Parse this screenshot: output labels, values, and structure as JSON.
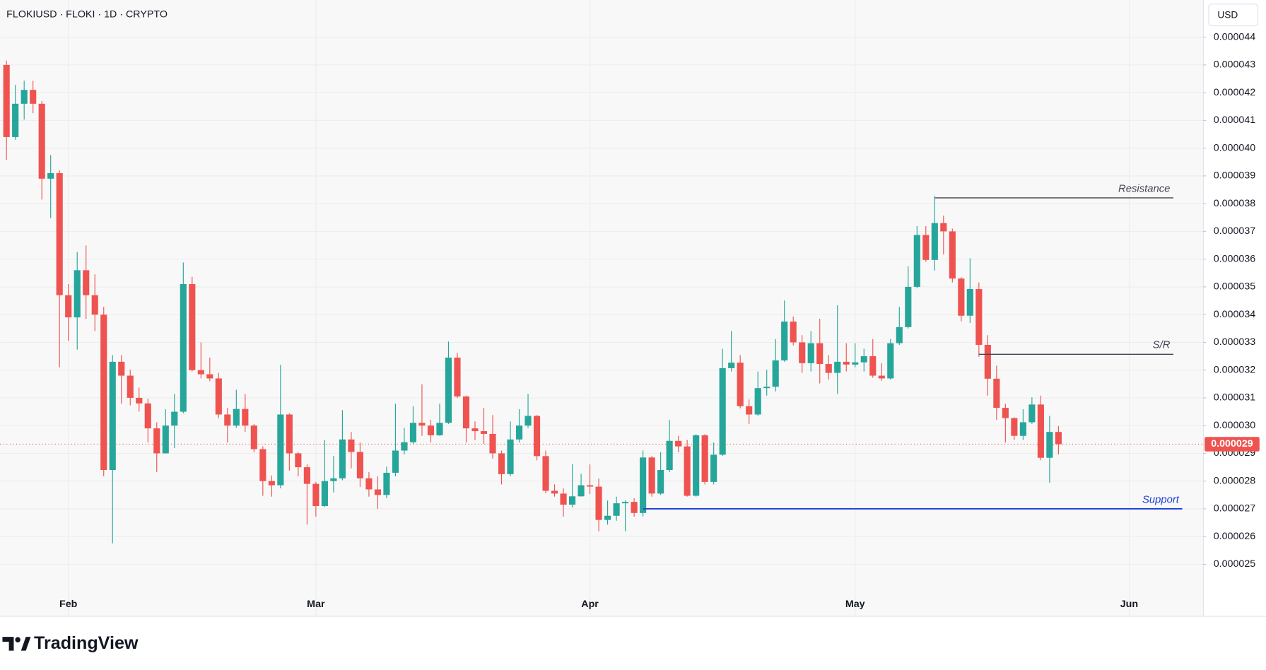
{
  "chart_data": {
    "type": "candlestick",
    "title": "FLOKIUSD · FLOKI · 1D · CRYPTO",
    "currency": "USD",
    "brand": "TradingView",
    "up_color": "#26a69a",
    "down_color": "#ef5350",
    "series": {
      "open": [
        4.3e-05,
        4.04e-05,
        4.16e-05,
        4.21e-05,
        4.16e-05,
        3.89e-05,
        3.91e-05,
        3.47e-05,
        3.39e-05,
        3.56e-05,
        3.47e-05,
        3.4e-05,
        2.84e-05,
        3.23e-05,
        3.18e-05,
        3.1e-05,
        3.08e-05,
        2.99e-05,
        2.9e-05,
        3e-05,
        3.05e-05,
        3.51e-05,
        3.2e-05,
        3.185e-05,
        3.17e-05,
        3.04e-05,
        3e-05,
        3.06e-05,
        3e-05,
        2.915e-05,
        2.8e-05,
        2.785e-05,
        3.04e-05,
        2.9e-05,
        2.85e-05,
        2.79e-05,
        2.71e-05,
        2.8e-05,
        2.81e-05,
        2.95e-05,
        2.905e-05,
        2.81e-05,
        2.77e-05,
        2.75e-05,
        2.83e-05,
        2.91e-05,
        2.94e-05,
        3.01e-05,
        3e-05,
        2.965e-05,
        3.01e-05,
        3.245e-05,
        3.105e-05,
        2.99e-05,
        2.98e-05,
        2.97e-05,
        2.9e-05,
        2.825e-05,
        2.95e-05,
        3e-05,
        3.035e-05,
        2.89e-05,
        2.765e-05,
        2.755e-05,
        2.715e-05,
        2.745e-05,
        2.785e-05,
        2.78e-05,
        2.66e-05,
        2.675e-05,
        2.72e-05,
        2.725e-05,
        2.685e-05,
        2.885e-05,
        2.755e-05,
        2.84e-05,
        2.945e-05,
        2.925e-05,
        2.747e-05,
        2.965e-05,
        2.797e-05,
        2.895e-05,
        3.207e-05,
        3.227e-05,
        3.07e-05,
        3.04e-05,
        3.135e-05,
        3.14e-05,
        3.235e-05,
        3.375e-05,
        3.3e-05,
        3.225e-05,
        3.297e-05,
        3.222e-05,
        3.19e-05,
        3.23e-05,
        3.22e-05,
        3.228e-05,
        3.25e-05,
        3.18e-05,
        3.17e-05,
        3.297e-05,
        3.355e-05,
        3.5e-05,
        3.687e-05,
        3.597e-05,
        3.73e-05,
        3.7e-05,
        3.53e-05,
        3.396e-05,
        3.492e-05,
        3.291e-05,
        3.169e-05,
        3.064e-05,
        3.027e-05,
        2.963e-05,
        3.012e-05,
        3.076e-05,
        2.884e-05,
        2.977e-05
      ],
      "high": [
        4.316e-05,
        4.228e-05,
        4.243e-05,
        4.243e-05,
        4.17e-05,
        3.975e-05,
        3.92e-05,
        3.51e-05,
        3.626e-05,
        3.649e-05,
        3.545e-05,
        3.428e-05,
        3.254e-05,
        3.254e-05,
        3.201e-05,
        3.137e-05,
        3.097e-05,
        3.012e-05,
        3.059e-05,
        3.114e-05,
        3.588e-05,
        3.536e-05,
        3.3e-05,
        3.245e-05,
        3.19e-05,
        3.064e-05,
        3.129e-05,
        3.114e-05,
        3.006e-05,
        2.925e-05,
        2.82e-05,
        3.219e-05,
        3.044e-05,
        2.904e-05,
        2.86e-05,
        2.797e-05,
        2.948e-05,
        2.89e-05,
        3.056e-05,
        2.977e-05,
        2.939e-05,
        2.832e-05,
        2.817e-05,
        2.852e-05,
        3.079e-05,
        2.992e-05,
        3.07e-05,
        3.149e-05,
        3.021e-05,
        3.079e-05,
        3.303e-05,
        3.262e-05,
        3.108e-05,
        3.015e-05,
        3.064e-05,
        3.038e-05,
        2.91e-05,
        3.015e-05,
        3.059e-05,
        3.114e-05,
        3.038e-05,
        2.91e-05,
        2.788e-05,
        2.774e-05,
        2.861e-05,
        2.826e-05,
        2.86e-05,
        2.809e-05,
        2.73e-05,
        2.744e-05,
        2.73e-05,
        2.738e-05,
        2.91e-05,
        2.89e-05,
        2.904e-05,
        3.021e-05,
        2.963e-05,
        2.948e-05,
        2.969e-05,
        2.969e-05,
        2.939e-05,
        3.277e-05,
        3.341e-05,
        3.254e-05,
        3.094e-05,
        3.195e-05,
        3.201e-05,
        3.312e-05,
        3.451e-05,
        3.393e-05,
        3.326e-05,
        3.341e-05,
        3.385e-05,
        3.254e-05,
        3.434e-05,
        3.297e-05,
        3.297e-05,
        3.277e-05,
        3.312e-05,
        3.225e-05,
        3.312e-05,
        3.428e-05,
        3.574e-05,
        3.719e-05,
        3.719e-05,
        3.827e-05,
        3.757e-05,
        3.71e-05,
        3.535e-05,
        3.603e-05,
        3.516e-05,
        3.326e-05,
        3.216e-05,
        3.079e-05,
        3.03e-05,
        3.059e-05,
        3.102e-05,
        3.108e-05,
        3.035e-05,
        2.998e-05
      ],
      "low": [
        3.958e-05,
        4.03e-05,
        4.103e-05,
        4.126e-05,
        3.815e-05,
        3.748e-05,
        3.21e-05,
        3.306e-05,
        3.274e-05,
        3.385e-05,
        3.341e-05,
        2.817e-05,
        2.576e-05,
        3.079e-05,
        3.073e-05,
        3.05e-05,
        2.939e-05,
        2.832e-05,
        2.899e-05,
        2.919e-05,
        3.044e-05,
        3.195e-05,
        3.17e-05,
        3.16e-05,
        3.027e-05,
        2.939e-05,
        2.992e-05,
        2.977e-05,
        2.904e-05,
        2.747e-05,
        2.744e-05,
        2.774e-05,
        2.838e-05,
        2.817e-05,
        2.643e-05,
        2.672e-05,
        2.707e-05,
        2.759e-05,
        2.803e-05,
        2.846e-05,
        2.779e-05,
        2.744e-05,
        2.7e-05,
        2.738e-05,
        2.817e-05,
        2.896e-05,
        2.934e-05,
        2.963e-05,
        2.939e-05,
        2.963e-05,
        3.006e-05,
        3.099e-05,
        2.939e-05,
        2.948e-05,
        2.934e-05,
        2.881e-05,
        2.788e-05,
        2.817e-05,
        2.939e-05,
        2.992e-05,
        2.875e-05,
        2.756e-05,
        2.744e-05,
        2.672e-05,
        2.705e-05,
        2.744e-05,
        2.753e-05,
        2.619e-05,
        2.643e-05,
        2.657e-05,
        2.619e-05,
        2.672e-05,
        2.672e-05,
        2.744e-05,
        2.75e-05,
        2.832e-05,
        2.904e-05,
        2.744e-05,
        2.744e-05,
        2.788e-05,
        2.788e-05,
        2.89e-05,
        3.195e-05,
        3.062e-05,
        3.006e-05,
        3.035e-05,
        3.108e-05,
        3.123e-05,
        3.23e-05,
        3.289e-05,
        3.19e-05,
        3.195e-05,
        3.152e-05,
        3.166e-05,
        3.114e-05,
        3.195e-05,
        3.21e-05,
        3.195e-05,
        3.172e-05,
        3.161e-05,
        3.165e-05,
        3.291e-05,
        3.35e-05,
        3.495e-05,
        3.59e-05,
        3.559e-05,
        3.617e-05,
        3.516e-05,
        3.376e-05,
        3.37e-05,
        3.248e-05,
        3.108e-05,
        3.021e-05,
        2.939e-05,
        2.948e-05,
        2.948e-05,
        3.006e-05,
        2.875e-05,
        2.794e-05,
        2.896e-05
      ],
      "close": [
        4.04e-05,
        4.16e-05,
        4.21e-05,
        4.16e-05,
        3.89e-05,
        3.91e-05,
        3.47e-05,
        3.39e-05,
        3.56e-05,
        3.47e-05,
        3.4e-05,
        2.84e-05,
        3.23e-05,
        3.18e-05,
        3.1e-05,
        3.08e-05,
        2.99e-05,
        2.9e-05,
        3e-05,
        3.05e-05,
        3.51e-05,
        3.2e-05,
        3.185e-05,
        3.17e-05,
        3.04e-05,
        3e-05,
        3.06e-05,
        3e-05,
        2.915e-05,
        2.8e-05,
        2.785e-05,
        3.04e-05,
        2.9e-05,
        2.85e-05,
        2.79e-05,
        2.71e-05,
        2.8e-05,
        2.81e-05,
        2.95e-05,
        2.905e-05,
        2.81e-05,
        2.77e-05,
        2.75e-05,
        2.83e-05,
        2.91e-05,
        2.94e-05,
        3.01e-05,
        3e-05,
        2.965e-05,
        3.01e-05,
        3.245e-05,
        3.105e-05,
        2.99e-05,
        2.98e-05,
        2.97e-05,
        2.9e-05,
        2.825e-05,
        2.95e-05,
        3e-05,
        3.035e-05,
        2.89e-05,
        2.765e-05,
        2.755e-05,
        2.715e-05,
        2.745e-05,
        2.785e-05,
        2.78e-05,
        2.66e-05,
        2.675e-05,
        2.72e-05,
        2.725e-05,
        2.685e-05,
        2.885e-05,
        2.755e-05,
        2.84e-05,
        2.945e-05,
        2.925e-05,
        2.747e-05,
        2.965e-05,
        2.797e-05,
        2.895e-05,
        3.207e-05,
        3.227e-05,
        3.07e-05,
        3.04e-05,
        3.135e-05,
        3.14e-05,
        3.235e-05,
        3.375e-05,
        3.3e-05,
        3.225e-05,
        3.297e-05,
        3.222e-05,
        3.19e-05,
        3.23e-05,
        3.22e-05,
        3.228e-05,
        3.25e-05,
        3.18e-05,
        3.17e-05,
        3.297e-05,
        3.355e-05,
        3.5e-05,
        3.687e-05,
        3.597e-05,
        3.73e-05,
        3.7e-05,
        3.53e-05,
        3.396e-05,
        3.492e-05,
        3.291e-05,
        3.169e-05,
        3.064e-05,
        3.027e-05,
        2.963e-05,
        3.012e-05,
        3.076e-05,
        2.884e-05,
        2.977e-05,
        2.933e-05
      ]
    },
    "last_price_label": "0.000029",
    "xlim": [
      -0.73,
      135.35
    ],
    "xticks": [
      {
        "value": 7,
        "label": "Feb"
      },
      {
        "value": 35,
        "label": "Mar"
      },
      {
        "value": 66,
        "label": "Apr"
      },
      {
        "value": 96,
        "label": "May"
      },
      {
        "value": 127,
        "label": "Jun"
      }
    ],
    "ylim": [
      2.314e-05,
      4.534e-05
    ],
    "yticks": [
      2.5e-05,
      2.6e-05,
      2.7e-05,
      2.8e-05,
      2.9e-05,
      {
        "value": 3e-05,
        "label": "0.000030"
      },
      3.1e-05,
      3.2e-05,
      3.3e-05,
      3.4e-05,
      3.5e-05,
      3.6e-05,
      3.7e-05,
      3.8e-05,
      3.9e-05,
      {
        "value": 4e-05,
        "label": "0.000040"
      },
      4.1e-05,
      4.2e-05,
      4.3e-05,
      4.4e-05
    ],
    "grid": true,
    "annotations": [
      {
        "label": "Resistance",
        "value": 3.821e-05,
        "x_start": 105,
        "x_end": 132,
        "color": "#434651"
      },
      {
        "label": "S/R",
        "value": 3.257e-05,
        "x_start": 110,
        "x_end": 132,
        "color": "#434651"
      },
      {
        "label": "Support",
        "value": 2.7e-05,
        "x_start": 72,
        "x_end": 133,
        "color": "#1c3fd6"
      }
    ]
  }
}
